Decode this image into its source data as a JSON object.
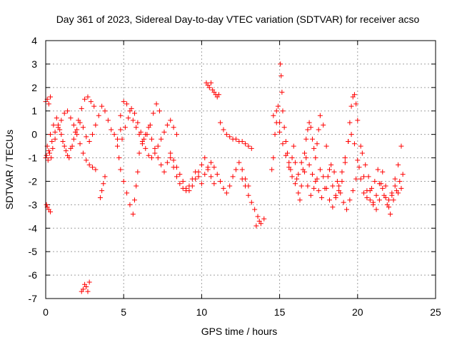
{
  "chart_data": {
    "type": "scatter",
    "title": "Day 361 of 2023, Sidereal Day-to-day VTEC variation (SDTVAR) for receiver acso",
    "xlabel": "GPS time / hours",
    "ylabel": "SDTVAR / TECUs",
    "xlim": [
      0,
      25
    ],
    "ylim": [
      -7,
      4
    ],
    "xticks": [
      "0",
      "5",
      "10",
      "15",
      "20",
      "25"
    ],
    "yticks": [
      "4",
      "3",
      "2",
      "1",
      "0",
      "-1",
      "-2",
      "-3",
      "-4",
      "-5",
      "-6",
      "-7"
    ],
    "grid": true,
    "marker": "plus",
    "series": [
      {
        "name": "SDTVAR",
        "color": "#ff0000",
        "x": [
          0.0,
          0.1,
          0.2,
          0.3,
          0.05,
          0.15,
          0.25,
          0.35,
          0.45,
          0.6,
          0.8,
          1.0,
          1.2,
          1.4,
          1.6,
          1.8,
          2.0,
          2.2,
          2.4,
          2.6,
          2.8,
          3.0,
          3.2,
          0.1,
          0.3,
          0.5,
          0.7,
          0.9,
          1.1,
          1.3,
          1.5,
          1.7,
          1.9,
          2.1,
          2.3,
          2.5,
          2.7,
          2.9,
          3.1,
          0.0,
          0.2,
          0.4,
          0.6,
          0.8,
          1.0,
          1.2,
          1.4,
          1.6,
          1.8,
          2.0,
          2.2,
          2.4,
          2.6,
          2.8,
          3.0,
          3.2,
          3.4,
          3.6,
          3.8,
          4.0,
          4.2,
          4.4,
          4.6,
          4.8,
          0.05,
          0.1,
          0.2,
          0.3,
          2.3,
          2.4,
          2.5,
          2.6,
          2.7,
          2.8,
          3.5,
          3.6,
          3.7,
          3.8,
          4.8,
          5.0,
          5.2,
          5.4,
          5.6,
          5.8,
          6.0,
          6.2,
          6.4,
          6.6,
          6.8,
          7.0,
          7.2,
          7.4,
          7.6,
          7.8,
          8.0,
          8.2,
          8.4,
          4.9,
          5.1,
          5.3,
          5.5,
          5.7,
          5.9,
          6.1,
          6.3,
          6.5,
          6.7,
          6.9,
          7.1,
          7.3,
          4.6,
          4.7,
          4.8,
          5.0,
          5.2,
          5.4,
          5.6,
          5.7,
          5.8,
          5.9,
          6.0,
          6.2,
          6.4,
          6.6,
          6.8,
          7.0,
          7.2,
          7.4,
          7.6,
          7.8,
          8.0,
          8.2,
          8.4,
          8.6,
          8.8,
          9.0,
          9.2,
          9.4,
          9.6,
          9.8,
          10.0,
          10.2,
          10.4,
          10.6,
          10.8,
          8.0,
          8.2,
          8.4,
          8.6,
          8.8,
          9.0,
          9.2,
          9.4,
          9.6,
          9.8,
          10.0,
          10.2,
          10.4,
          10.6,
          10.8,
          11.0,
          11.2,
          11.4,
          11.6,
          11.8,
          12.0,
          12.2,
          12.4,
          12.6,
          12.8,
          13.0,
          10.3,
          10.4,
          10.5,
          10.6,
          10.7,
          10.8,
          10.9,
          11.0,
          11.1,
          11.2,
          11.4,
          11.6,
          11.8,
          12.0,
          12.2,
          12.4,
          12.6,
          12.8,
          13.0,
          13.2,
          12.6,
          12.8,
          13.0,
          13.2,
          13.4,
          13.6,
          13.8,
          14.0,
          13.5,
          13.7,
          14.5,
          14.6,
          14.7,
          14.8,
          14.9,
          15.0,
          15.05,
          15.1,
          15.15,
          15.2,
          15.3,
          15.4,
          15.5,
          15.6,
          15.7,
          15.8,
          15.9,
          16.0,
          16.1,
          16.2,
          16.3,
          16.4,
          16.5,
          16.6,
          16.7,
          16.8,
          16.9,
          17.0,
          17.1,
          17.2,
          17.3,
          17.4,
          17.5,
          17.6,
          17.8,
          18.0,
          18.2,
          18.4,
          18.6,
          18.8,
          19.0,
          19.2,
          19.4,
          19.5,
          19.6,
          19.7,
          19.8,
          19.9,
          20.0,
          20.2,
          20.4,
          20.6,
          20.8,
          21.0,
          21.2,
          21.4,
          21.6,
          21.8,
          22.0,
          22.2,
          22.4,
          22.6,
          22.8,
          14.6,
          14.8,
          15.0,
          15.2,
          15.4,
          15.6,
          15.8,
          16.0,
          16.2,
          16.4,
          16.6,
          16.8,
          17.0,
          17.2,
          17.4,
          17.6,
          17.8,
          18.0,
          18.2,
          18.4,
          18.6,
          18.8,
          19.0,
          19.2,
          19.4,
          19.6,
          19.8,
          20.0,
          20.2,
          20.4,
          20.6,
          20.8,
          21.0,
          21.2,
          21.4,
          21.6,
          21.8,
          22.0,
          22.2,
          22.4,
          22.6,
          22.8,
          16.7,
          16.9,
          17.1,
          17.3,
          17.5,
          17.7,
          17.9,
          18.1,
          18.3,
          18.5,
          18.7,
          18.9,
          19.1,
          19.3,
          19.5,
          19.7,
          19.9,
          20.1,
          20.3,
          20.5,
          20.7,
          20.9,
          21.1,
          21.3,
          21.5,
          21.7,
          21.9,
          22.1,
          22.3,
          22.5,
          22.7,
          22.9
        ],
        "y": [
          1.4,
          1.5,
          1.3,
          1.6,
          -0.9,
          -1.1,
          -0.8,
          -1.0,
          -0.6,
          -0.2,
          0.3,
          0.6,
          0.9,
          1.0,
          0.7,
          0.4,
          0.0,
          -0.4,
          -0.8,
          -1.1,
          -1.3,
          -1.4,
          -1.5,
          -0.5,
          0.0,
          0.4,
          0.7,
          0.2,
          -0.3,
          -0.7,
          -1.0,
          -0.5,
          0.1,
          0.6,
          1.1,
          1.5,
          1.6,
          1.4,
          1.2,
          -1.0,
          -0.7,
          -0.3,
          0.1,
          0.4,
          0.0,
          -0.5,
          -0.9,
          -0.6,
          -0.2,
          0.2,
          0.5,
          0.3,
          -0.1,
          -0.3,
          0.0,
          0.4,
          0.8,
          1.2,
          1.0,
          0.6,
          0.2,
          0.0,
          -0.2,
          0.2,
          -3.0,
          -3.1,
          -3.2,
          -3.3,
          -6.7,
          -6.6,
          -6.4,
          -6.5,
          -6.7,
          -6.3,
          -2.7,
          -2.4,
          -2.1,
          -1.8,
          0.8,
          1.4,
          1.3,
          1.0,
          0.6,
          0.3,
          0.0,
          -0.3,
          -0.6,
          -0.9,
          -1.0,
          -0.8,
          -0.5,
          -0.2,
          0.1,
          0.4,
          0.6,
          0.3,
          0.0,
          -0.2,
          0.3,
          0.7,
          1.1,
          0.9,
          0.5,
          0.1,
          -0.2,
          0.0,
          0.4,
          0.9,
          1.3,
          1.0,
          -0.5,
          -1.0,
          -1.5,
          -2.0,
          -2.5,
          -3.0,
          -3.4,
          -2.8,
          -2.2,
          -1.6,
          -0.8,
          -0.4,
          0.0,
          0.3,
          -0.2,
          -0.6,
          -1.0,
          -1.3,
          -1.6,
          -1.2,
          -0.8,
          -1.1,
          -1.4,
          -1.7,
          -2.0,
          -2.3,
          -2.4,
          -2.2,
          -1.9,
          -1.6,
          -1.3,
          -1.0,
          -1.5,
          -1.8,
          -2.1,
          -1.0,
          -1.4,
          -1.8,
          -2.1,
          -2.3,
          -2.4,
          -2.2,
          -1.9,
          -1.6,
          -1.8,
          -2.1,
          -1.7,
          -1.4,
          -1.2,
          -1.4,
          -1.7,
          -2.0,
          -2.3,
          -2.5,
          -2.2,
          -1.8,
          -1.5,
          -1.2,
          -1.5,
          -1.9,
          -2.2,
          2.2,
          2.1,
          2.0,
          2.2,
          1.9,
          1.8,
          1.7,
          1.6,
          1.7,
          0.5,
          0.2,
          0.0,
          -0.1,
          -0.2,
          -0.2,
          -0.3,
          -0.3,
          -0.4,
          -0.5,
          -0.6,
          -1.9,
          -2.2,
          -2.6,
          -2.9,
          -3.2,
          -3.5,
          -3.8,
          -3.6,
          -3.9,
          -3.7,
          -1.5,
          -1.0,
          0.0,
          1.0,
          1.2,
          0.5,
          3.0,
          2.5,
          1.8,
          1.0,
          0.3,
          -0.3,
          -0.8,
          -1.2,
          -1.5,
          -1.0,
          -0.5,
          -1.2,
          -1.9,
          -2.5,
          -2.8,
          -2.2,
          -1.5,
          -0.8,
          -0.2,
          0.2,
          0.5,
          0.3,
          -0.2,
          -0.6,
          -1.0,
          -0.4,
          0.2,
          0.8,
          0.4,
          -0.5,
          -1.5,
          -2.2,
          -2.6,
          -2.4,
          -2.0,
          -1.2,
          -0.3,
          0.5,
          1.2,
          1.6,
          1.7,
          1.3,
          0.6,
          -0.5,
          -1.8,
          -2.4,
          -2.8,
          -3.0,
          -2.6,
          -2.1,
          -1.6,
          -2.2,
          -2.8,
          -2.5,
          -1.9,
          -1.3,
          -0.5,
          0.8,
          0.5,
          0.1,
          -0.4,
          -0.9,
          -1.4,
          -1.8,
          -2.1,
          -1.7,
          -1.2,
          -1.6,
          -2.2,
          -2.6,
          -2.3,
          -1.9,
          -1.5,
          -1.8,
          -2.3,
          -2.8,
          -3.1,
          -2.7,
          -2.2,
          -1.6,
          -1.0,
          -0.3,
          0.0,
          -0.4,
          -1.1,
          -1.9,
          -2.5,
          -2.7,
          -2.4,
          -2.9,
          -3.2,
          -2.8,
          -2.3,
          -2.7,
          -3.1,
          -2.6,
          -2.2,
          -2.5,
          -2.3,
          -1.0,
          -1.3,
          -1.7,
          -2.0,
          -2.4,
          -2.7,
          -2.3,
          -1.8,
          -1.3,
          -1.6,
          -2.0,
          -2.5,
          -2.9,
          -3.2,
          -2.8,
          -2.4,
          -1.9,
          -1.4,
          -0.8,
          -1.3,
          -1.8,
          -2.3,
          -2.0,
          -1.5,
          -2.1,
          -2.6,
          -3.0,
          -3.4,
          -2.8,
          -2.4,
          -2.0,
          -1.7
        ]
      }
    ]
  }
}
